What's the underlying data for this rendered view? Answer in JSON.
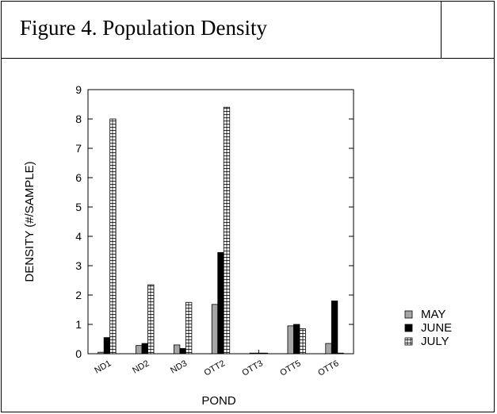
{
  "figure": {
    "title": "Figure 4.  Population Density"
  },
  "chart_data": {
    "type": "bar",
    "xlabel": "POND",
    "ylabel": "DENSITY (#/SAMPLE)",
    "ylim": [
      0,
      9
    ],
    "yticks": [
      0,
      1,
      2,
      3,
      4,
      5,
      6,
      7,
      8,
      9
    ],
    "categories": [
      "ND1",
      "ND2",
      "ND3",
      "OTT2",
      "OTT3",
      "OTT5",
      "OTT6"
    ],
    "series": [
      {
        "name": "MAY",
        "values": [
          0.05,
          0.28,
          0.3,
          1.68,
          0.0,
          0.95,
          0.35
        ],
        "style": "gray",
        "color": "#a6a6a6"
      },
      {
        "name": "JUNE",
        "values": [
          0.55,
          0.35,
          0.18,
          3.45,
          0.0,
          1.0,
          1.8
        ],
        "style": "black",
        "color": "#000000"
      },
      {
        "name": "JULY",
        "values": [
          8.0,
          2.35,
          1.75,
          8.4,
          0.0,
          0.85,
          0.0
        ],
        "style": "hatched",
        "color": "#ffffff"
      }
    ],
    "legend_position": "right",
    "grid": false
  }
}
